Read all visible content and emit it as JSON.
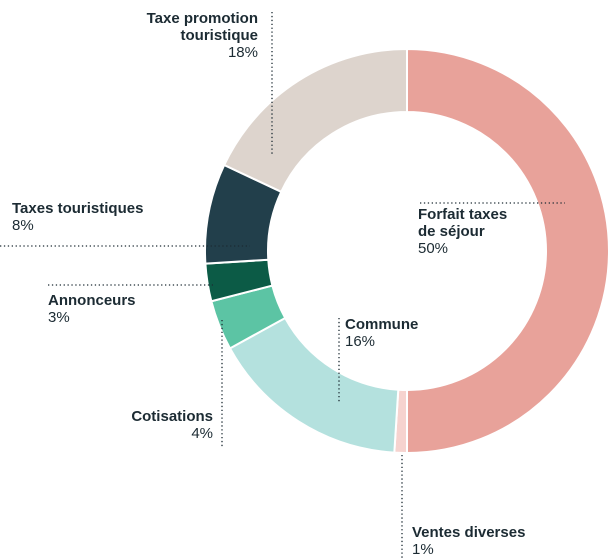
{
  "chart_data": {
    "type": "donut",
    "categories": [
      "Forfait taxes de séjour",
      "Ventes diverses",
      "Commune",
      "Cotisations",
      "Annonceurs",
      "Taxes touristiques",
      "Taxe promotion touristique"
    ],
    "values": [
      50,
      1,
      16,
      4,
      3,
      8,
      18
    ],
    "value_labels": [
      "50%",
      "1%",
      "16%",
      "4%",
      "3%",
      "8%",
      "18%"
    ],
    "colors": [
      "#e8a29a",
      "#f6d3cf",
      "#b4e1de",
      "#5cc4a4",
      "#0c5b46",
      "#223f4b",
      "#ddd4cd"
    ]
  }
}
